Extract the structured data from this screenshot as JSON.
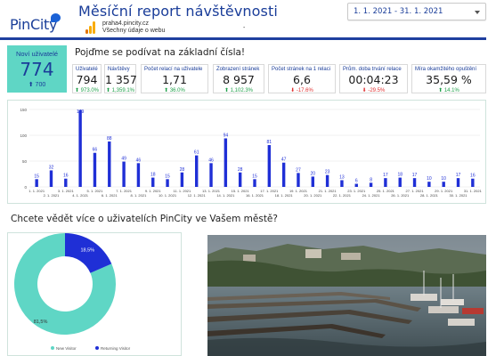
{
  "header": {
    "logo_text": "PinCity",
    "title": "Měsíční report návštěvnosti",
    "site": "praha4.pincity.cz",
    "site_sub": "Všechny údaje o webu",
    "dash": "-",
    "date_range": "1. 1. 2021 - 31. 1. 2021"
  },
  "new_users": {
    "label": "Noví uživatelé",
    "value": "774",
    "delta": "⬆ 700"
  },
  "section1_heading": "Pojďme se podívat na základní čísla!",
  "kpis": [
    {
      "label": "Uživatelé",
      "value": "794",
      "delta": "⬆ 973.0%",
      "dir": "up"
    },
    {
      "label": "Návštěvy",
      "value": "1 357",
      "delta": "⬆ 1,359.1%",
      "dir": "up"
    },
    {
      "label": "Počet relací na uživatele",
      "value": "1,71",
      "delta": "⬆ 36.0%",
      "dir": "up"
    },
    {
      "label": "Zobrazení stránek",
      "value": "8 957",
      "delta": "⬆ 1,102.3%",
      "dir": "up"
    },
    {
      "label": "Počet stránek na 1 relaci",
      "value": "6,6",
      "delta": "⬇ -17.6%",
      "dir": "down"
    },
    {
      "label": "Prům. doba trvání relace",
      "value": "00:04:23",
      "delta": "⬇ -29.5%",
      "dir": "down"
    },
    {
      "label": "Míra okamžitého opuštění",
      "value": "35,59 %",
      "delta": "⬆ 14.1%",
      "dir": "up"
    }
  ],
  "chart_data": [
    {
      "type": "bar",
      "x": [
        "1. 1. 2021",
        "2. 1. 2021",
        "3. 1. 2021",
        "4. 1. 2021",
        "5. 1. 2021",
        "6. 1. 2021",
        "7. 1. 2021",
        "8. 1. 2021",
        "9. 1. 2021",
        "10. 1. 2021",
        "11. 1. 2021",
        "12. 1. 2021",
        "13. 1. 2021",
        "14. 1. 2021",
        "15. 1. 2021",
        "16. 1. 2021",
        "17. 1. 2021",
        "18. 1. 2021",
        "19. 1. 2021",
        "20. 1. 2021",
        "21. 1. 2021",
        "22. 1. 2021",
        "23. 1. 2021",
        "24. 1. 2021",
        "25. 1. 2021",
        "26. 1. 2021",
        "27. 1. 2021",
        "28. 1. 2021",
        "29. 1. 2021",
        "30. 1. 2021",
        "31. 1. 2021"
      ],
      "values": [
        15,
        32,
        16,
        149,
        66,
        88,
        49,
        46,
        18,
        15,
        28,
        61,
        46,
        94,
        28,
        15,
        81,
        47,
        27,
        20,
        23,
        13,
        6,
        8,
        17,
        18,
        17,
        10,
        10,
        17,
        16
      ],
      "ylim": [
        0,
        150
      ],
      "yticks": [
        0,
        50,
        100,
        150
      ],
      "grid": true,
      "bar_color": "#1f2fd6"
    },
    {
      "type": "pie",
      "labels": [
        "New Visitor",
        "Returning Visitor"
      ],
      "values": [
        81.5,
        18.5
      ],
      "value_labels": [
        "81,5%",
        "18,5%"
      ],
      "colors": [
        "#5fd6c5",
        "#1f2fd6"
      ],
      "donut": true,
      "legend": "bottom"
    }
  ],
  "section2_heading": "Chcete vědět více o uživatelích PinCity ve Vašem městě?"
}
